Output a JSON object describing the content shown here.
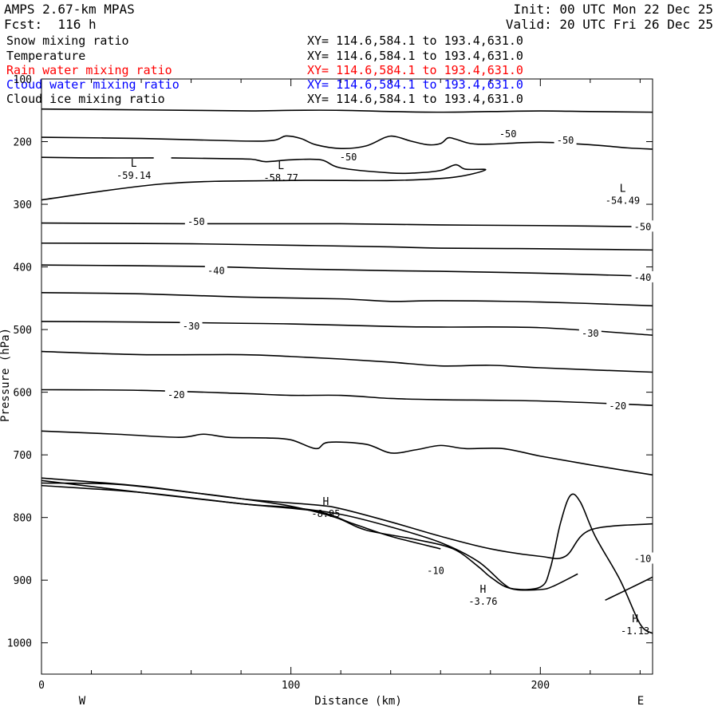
{
  "header": {
    "model": "AMPS 2.67-km MPAS",
    "forecast": "Fcst:  116 h",
    "init": "Init: 00 UTC Mon 22 Dec 25",
    "valid": "Valid: 20 UTC Fri 26 Dec 25",
    "fields": [
      {
        "name": "Snow mixing ratio",
        "xy": "XY= 114.6,584.1 to 193.4,631.0",
        "color": "#000000"
      },
      {
        "name": "Temperature",
        "xy": "XY= 114.6,584.1 to 193.4,631.0",
        "color": "#000000"
      },
      {
        "name": "Rain water mixing ratio",
        "xy": "XY= 114.6,584.1 to 193.4,631.0",
        "color": "#ff0000"
      },
      {
        "name": "Cloud water mixing ratio",
        "xy": "XY= 114.6,584.1 to 193.4,631.0",
        "color": "#0000ff"
      },
      {
        "name": "Cloud ice mixing ratio",
        "xy": "XY= 114.6,584.1 to 193.4,631.0",
        "color": "#000000"
      }
    ]
  },
  "chart_data": {
    "type": "contour",
    "title": "",
    "xlabel": "Distance (km)",
    "ylabel": "Pressure (hPa)",
    "xlim": [
      0,
      245
    ],
    "ylim": [
      1050,
      100
    ],
    "x_ticks": [
      0,
      100,
      200
    ],
    "y_ticks": [
      100,
      200,
      300,
      400,
      500,
      600,
      700,
      800,
      900,
      1000
    ],
    "x_end_labels": {
      "left": "W",
      "right": "E"
    },
    "contours": [
      {
        "label": "",
        "points": [
          [
            0,
            148
          ],
          [
            30,
            149
          ],
          [
            60,
            150
          ],
          [
            84,
            151
          ],
          [
            100,
            150
          ],
          [
            120,
            150
          ],
          [
            140,
            152
          ],
          [
            160,
            153
          ],
          [
            180,
            152
          ],
          [
            200,
            151
          ],
          [
            220,
            152
          ],
          [
            245,
            153
          ]
        ]
      },
      {
        "label": "",
        "points": [
          [
            0,
            193
          ],
          [
            40,
            195
          ],
          [
            80,
            199
          ],
          [
            93,
            198
          ],
          [
            98,
            191
          ],
          [
            104,
            195
          ],
          [
            110,
            205
          ],
          [
            120,
            211
          ],
          [
            130,
            207
          ],
          [
            138,
            193
          ],
          [
            142,
            192
          ],
          [
            148,
            199
          ],
          [
            155,
            205
          ],
          [
            160,
            203
          ],
          [
            163,
            194
          ],
          [
            166,
            196
          ],
          [
            172,
            203
          ],
          [
            180,
            204
          ],
          [
            200,
            201
          ],
          [
            220,
            205
          ],
          [
            235,
            210
          ],
          [
            245,
            212
          ]
        ]
      },
      {
        "label": "",
        "points": [
          [
            0,
            225
          ],
          [
            20,
            226
          ],
          [
            45,
            226
          ]
        ]
      },
      {
        "label": "",
        "points": [
          [
            52,
            226
          ],
          [
            70,
            227
          ],
          [
            84,
            228
          ],
          [
            90,
            232
          ],
          [
            100,
            229
          ],
          [
            112,
            229
          ],
          [
            120,
            242
          ],
          [
            140,
            250
          ],
          [
            150,
            250
          ],
          [
            160,
            246
          ],
          [
            166,
            237
          ],
          [
            170,
            244
          ],
          [
            178,
            245
          ],
          [
            165,
            257
          ],
          [
            140,
            262
          ],
          [
            100,
            262
          ],
          [
            50,
            267
          ],
          [
            0,
            293
          ]
        ]
      },
      {
        "label": "",
        "points": [
          [
            0,
            330
          ],
          [
            60,
            331
          ],
          [
            120,
            331
          ],
          [
            160,
            333
          ],
          [
            200,
            334
          ],
          [
            245,
            336
          ]
        ]
      },
      {
        "label": "",
        "points": [
          [
            0,
            362
          ],
          [
            60,
            363
          ],
          [
            110,
            366
          ],
          [
            140,
            368
          ],
          [
            160,
            370
          ],
          [
            200,
            371
          ],
          [
            245,
            373
          ]
        ]
      },
      {
        "label": "",
        "points": [
          [
            0,
            397
          ],
          [
            60,
            399
          ],
          [
            100,
            403
          ],
          [
            140,
            406
          ],
          [
            160,
            407
          ],
          [
            200,
            410
          ],
          [
            245,
            415
          ]
        ]
      },
      {
        "label": "",
        "points": [
          [
            0,
            441
          ],
          [
            40,
            443
          ],
          [
            80,
            448
          ],
          [
            120,
            451
          ],
          [
            140,
            455
          ],
          [
            160,
            454
          ],
          [
            200,
            456
          ],
          [
            245,
            462
          ]
        ]
      },
      {
        "label": "",
        "points": [
          [
            0,
            487
          ],
          [
            40,
            488
          ],
          [
            80,
            490
          ],
          [
            100,
            491
          ],
          [
            140,
            495
          ],
          [
            160,
            496
          ],
          [
            200,
            497
          ],
          [
            245,
            509
          ]
        ]
      },
      {
        "label": "",
        "points": [
          [
            0,
            535
          ],
          [
            40,
            540
          ],
          [
            80,
            540
          ],
          [
            100,
            543
          ],
          [
            120,
            547
          ],
          [
            140,
            552
          ],
          [
            160,
            558
          ],
          [
            180,
            557
          ],
          [
            200,
            561
          ],
          [
            245,
            568
          ]
        ]
      },
      {
        "label": "",
        "points": [
          [
            0,
            596
          ],
          [
            40,
            597
          ],
          [
            80,
            602
          ],
          [
            100,
            605
          ],
          [
            120,
            605
          ],
          [
            140,
            610
          ],
          [
            160,
            612
          ],
          [
            200,
            614
          ],
          [
            245,
            621
          ]
        ]
      },
      {
        "label": "",
        "points": [
          [
            0,
            662
          ],
          [
            30,
            667
          ],
          [
            55,
            672
          ],
          [
            65,
            667
          ],
          [
            75,
            672
          ],
          [
            90,
            673
          ],
          [
            100,
            676
          ],
          [
            110,
            690
          ],
          [
            115,
            680
          ],
          [
            130,
            683
          ],
          [
            140,
            697
          ],
          [
            150,
            692
          ],
          [
            160,
            685
          ],
          [
            170,
            690
          ],
          [
            185,
            690
          ],
          [
            200,
            702
          ],
          [
            220,
            716
          ],
          [
            245,
            732
          ]
        ]
      },
      {
        "label": "",
        "points": [
          [
            0,
            737
          ],
          [
            40,
            750
          ],
          [
            80,
            770
          ],
          [
            110,
            780
          ],
          [
            120,
            786
          ],
          [
            140,
            807
          ],
          [
            160,
            830
          ],
          [
            180,
            850
          ],
          [
            200,
            862
          ],
          [
            210,
            862
          ],
          [
            220,
            820
          ],
          [
            245,
            810
          ]
        ]
      },
      {
        "label": "",
        "points": [
          [
            0,
            741
          ],
          [
            40,
            760
          ],
          [
            80,
            778
          ],
          [
            100,
            784
          ],
          [
            120,
            795
          ],
          [
            140,
            815
          ],
          [
            160,
            840
          ],
          [
            175,
            870
          ],
          [
            185,
            905
          ],
          [
            190,
            915
          ],
          [
            200,
            915
          ],
          [
            205,
            910
          ],
          [
            215,
            890
          ]
        ]
      },
      {
        "label": "",
        "points": [
          [
            0,
            745
          ],
          [
            30,
            747
          ],
          [
            60,
            760
          ],
          [
            80,
            770
          ],
          [
            100,
            782
          ],
          [
            118,
            800
          ],
          [
            130,
            820
          ],
          [
            150,
            835
          ],
          [
            165,
            850
          ],
          [
            175,
            878
          ],
          [
            180,
            895
          ],
          [
            188,
            913
          ],
          [
            200,
            911
          ],
          [
            204,
            881
          ],
          [
            208,
            810
          ],
          [
            212,
            765
          ],
          [
            216,
            775
          ],
          [
            222,
            830
          ],
          [
            232,
            900
          ],
          [
            240,
            970
          ],
          [
            245,
            985
          ]
        ]
      },
      {
        "label": "",
        "points": [
          [
            0,
            749
          ],
          [
            40,
            760
          ],
          [
            80,
            778
          ],
          [
            110,
            790
          ],
          [
            125,
            810
          ],
          [
            140,
            830
          ],
          [
            160,
            850
          ]
        ]
      },
      {
        "label": "",
        "points": [
          [
            226,
            932
          ],
          [
            240,
            905
          ],
          [
            245,
            895
          ]
        ]
      }
    ],
    "contour_labels": [
      {
        "text": "-50",
        "x": 123,
        "y": 225
      },
      {
        "text": "-50",
        "x": 187,
        "y": 188
      },
      {
        "text": "-50",
        "x": 210,
        "y": 198
      },
      {
        "text": "-50",
        "x": 62,
        "y": 328
      },
      {
        "text": "-50",
        "x": 241,
        "y": 336
      },
      {
        "text": "-40",
        "x": 70,
        "y": 406
      },
      {
        "text": "-40",
        "x": 241,
        "y": 417
      },
      {
        "text": "-30",
        "x": 60,
        "y": 495
      },
      {
        "text": "-30",
        "x": 220,
        "y": 506
      },
      {
        "text": "-20",
        "x": 54,
        "y": 604
      },
      {
        "text": "-20",
        "x": 231,
        "y": 622
      },
      {
        "text": "-10",
        "x": 158,
        "y": 885
      },
      {
        "text": "-10",
        "x": 241,
        "y": 866
      }
    ],
    "extrema": [
      {
        "type": "L",
        "value": "-59.14",
        "x": 37,
        "y": 240
      },
      {
        "type": "L",
        "value": "-58.77",
        "x": 96,
        "y": 244
      },
      {
        "type": "L",
        "value": "-54.49",
        "x": 233,
        "y": 280
      },
      {
        "type": "H",
        "value": "-8.95",
        "x": 114,
        "y": 780
      },
      {
        "type": "H",
        "value": "-3.76",
        "x": 177,
        "y": 920
      },
      {
        "type": "H",
        "value": "-1.13",
        "x": 238,
        "y": 967
      }
    ]
  }
}
